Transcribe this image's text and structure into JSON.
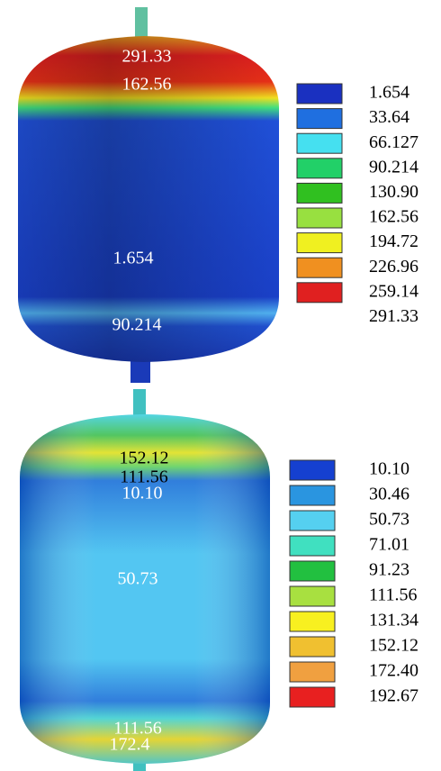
{
  "panels": [
    {
      "contour_labels": [
        "291.33",
        "162.56",
        "1.654",
        "90.214"
      ],
      "legend": {
        "labels": [
          "1.654",
          "33.64",
          "66.127",
          "90.214",
          "130.90",
          "162.56",
          "194.72",
          "226.96",
          "259.14",
          "291.33"
        ],
        "colors": [
          "#1a30c0",
          "#1f6fe0",
          "#45e0f0",
          "#22d068",
          "#30c020",
          "#98e040",
          "#f0f020",
          "#f09020",
          "#e02020"
        ]
      }
    },
    {
      "contour_labels": [
        "152.12",
        "111.56",
        "10.10",
        "50.73",
        "111.56",
        "172.4"
      ],
      "legend": {
        "labels": [
          "10.10",
          "30.46",
          "50.73",
          "71.01",
          "91.23",
          "111.56",
          "131.34",
          "152.12",
          "172.40",
          "192.67"
        ],
        "colors": [
          "#1540d0",
          "#2a95e0",
          "#55d0f0",
          "#40e0c0",
          "#22c040",
          "#a8e040",
          "#f8f020",
          "#f0c030",
          "#f0a040",
          "#e82020"
        ]
      }
    }
  ]
}
